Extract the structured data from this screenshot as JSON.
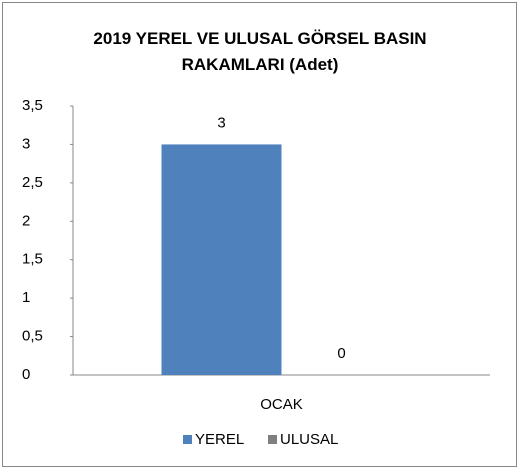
{
  "chart_data": {
    "type": "bar",
    "title": "2019 YEREL VE ULUSAL GÖRSEL BASIN RAKAMLARI (Adet)",
    "categories": [
      "OCAK"
    ],
    "series": [
      {
        "name": "YEREL",
        "color": "#4f81bd",
        "values": [
          3
        ]
      },
      {
        "name": "ULUSAL",
        "color": "#808080",
        "values": [
          0
        ]
      }
    ],
    "ylim": [
      0,
      3.5
    ],
    "yticks": [
      0,
      {
        "value": 0.5,
        "label": "0,5"
      },
      1,
      {
        "value": 1.5,
        "label": "1,5"
      },
      2,
      {
        "value": 2.5,
        "label": "2,5"
      },
      3,
      {
        "value": 3.5,
        "label": "3,5"
      }
    ],
    "grid": false,
    "legend": "bottom"
  }
}
